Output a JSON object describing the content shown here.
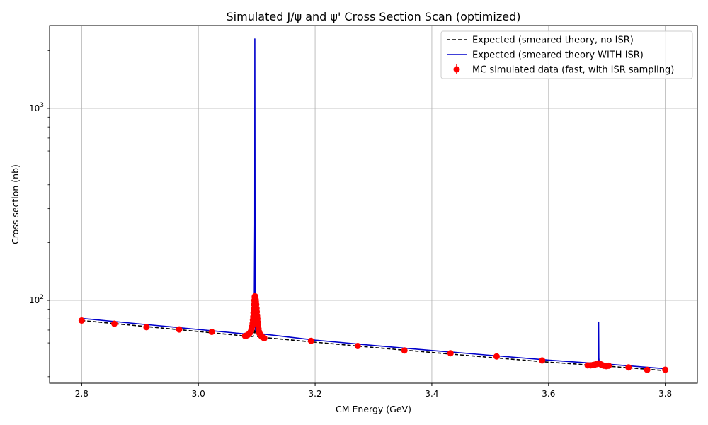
{
  "chart_data": {
    "type": "line",
    "title": "Simulated J/ψ and ψ' Cross Section Scan (optimized)",
    "xlabel": "CM Energy (GeV)",
    "ylabel": "Cross section (nb)",
    "xlim": [
      2.745,
      3.855
    ],
    "ylim": [
      37,
      2700
    ],
    "yscale": "log",
    "x_ticks": [
      "2.8",
      "3.0",
      "3.2",
      "3.4",
      "3.6",
      "3.8"
    ],
    "y_ticks": [
      {
        "value": 100,
        "base": "10",
        "exp": "2"
      },
      {
        "value": 1000,
        "base": "10",
        "exp": "3"
      }
    ],
    "grid": true,
    "legend_position": "top-right",
    "series": [
      {
        "name": "Expected (smeared theory, no ISR)",
        "kind": "line",
        "style": "dashed",
        "color": "#000000",
        "x": [
          2.8,
          2.9,
          3.0,
          3.08,
          3.09,
          3.094,
          3.096,
          3.097,
          3.098,
          3.1,
          3.104,
          3.11,
          3.2,
          3.3,
          3.4,
          3.5,
          3.6,
          3.68,
          3.6855,
          3.69,
          3.7,
          3.8
        ],
        "y": [
          78.5,
          73.5,
          68.8,
          65.2,
          64.8,
          64.9,
          68,
          70.5,
          68,
          65,
          64.4,
          64.1,
          60.5,
          56.8,
          53.5,
          50.4,
          47.6,
          45.8,
          46.5,
          45.7,
          45.4,
          43.0
        ]
      },
      {
        "name": "Expected (smeared theory WITH ISR)",
        "kind": "line",
        "style": "solid",
        "color": "#0000cc",
        "x": [
          2.8,
          2.9,
          3.0,
          3.08,
          3.09,
          3.0955,
          3.0965,
          3.0967,
          3.0969,
          3.0972,
          3.0976,
          3.098,
          3.1,
          3.11,
          3.2,
          3.3,
          3.4,
          3.5,
          3.6,
          3.684,
          3.6855,
          3.6858,
          3.6862,
          3.6868,
          3.69,
          3.7,
          3.8
        ],
        "y": [
          80.5,
          75.3,
          70.5,
          66.8,
          66.4,
          75,
          250,
          2300,
          700,
          90,
          72,
          69.5,
          67.6,
          66.8,
          62.0,
          58.2,
          54.8,
          51.7,
          48.8,
          46.8,
          50,
          77,
          50,
          47.5,
          46.8,
          46.5,
          44.0
        ]
      },
      {
        "name": "MC simulated data (fast, with ISR sampling)",
        "kind": "scatter",
        "color": "#ff0000",
        "x": [
          2.8,
          2.856,
          2.911,
          2.967,
          3.023,
          3.08,
          3.082,
          3.084,
          3.086,
          3.088,
          3.09,
          3.091,
          3.092,
          3.093,
          3.0935,
          3.094,
          3.0945,
          3.095,
          3.0955,
          3.096,
          3.0965,
          3.097,
          3.0975,
          3.098,
          3.0985,
          3.099,
          3.0995,
          3.1,
          3.1005,
          3.101,
          3.1015,
          3.102,
          3.103,
          3.104,
          3.105,
          3.107,
          3.109,
          3.111,
          3.113,
          3.193,
          3.273,
          3.353,
          3.432,
          3.511,
          3.589,
          3.667,
          3.672,
          3.676,
          3.679,
          3.682,
          3.684,
          3.686,
          3.688,
          3.69,
          3.692,
          3.695,
          3.699,
          3.703,
          3.737,
          3.769,
          3.8
        ],
        "y": [
          78.5,
          75.5,
          72.5,
          70.5,
          68.5,
          65.2,
          65.5,
          65.8,
          66.5,
          67.5,
          69,
          71,
          73,
          76,
          79,
          82,
          86,
          90,
          95,
          100,
          104,
          105,
          104,
          101,
          98,
          95,
          91,
          87,
          83,
          80,
          77,
          74,
          71,
          68.5,
          67,
          65.5,
          64.5,
          64,
          63.5,
          61.5,
          57.8,
          54.8,
          53,
          51,
          48.6,
          45.8,
          45.8,
          46,
          46.2,
          46.5,
          46.8,
          46.9,
          46.6,
          46.3,
          45.9,
          45.6,
          45.4,
          45.6,
          44.7,
          43.4,
          43.5
        ]
      }
    ]
  }
}
